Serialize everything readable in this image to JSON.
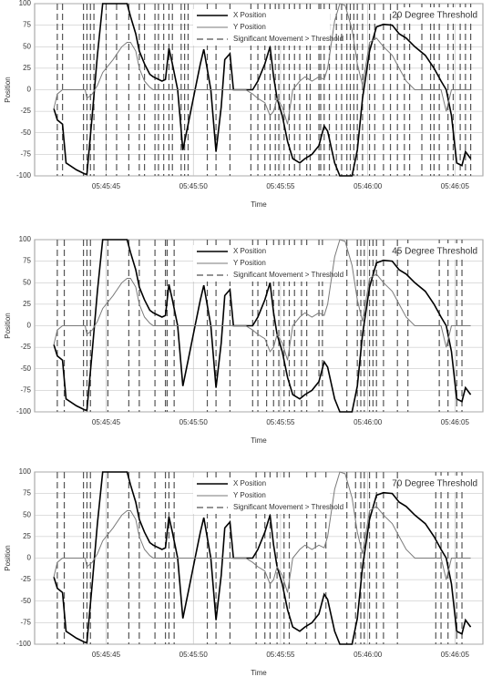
{
  "chart_data": [
    {
      "type": "line",
      "title": "20 Degree Threshold",
      "xlabel": "Time",
      "ylabel": "Position",
      "x": [
        20742.0,
        20742.2,
        20742.5,
        20742.7,
        20743.3,
        20743.8,
        20743.9,
        20744.2,
        20744.5,
        20744.8,
        20745.4,
        20745.9,
        20746.2,
        20746.4,
        20746.7,
        20746.9,
        20747.2,
        20747.5,
        20747.7,
        20748.2,
        20748.4,
        20748.6,
        20748.8,
        20749.1,
        20749.4,
        20749.7,
        20750.1,
        20750.4,
        20750.6,
        20751.0,
        20751.3,
        20751.6,
        20751.8,
        20752.1,
        20752.3,
        20752.6,
        20753.0,
        20753.4,
        20753.7,
        20754.1,
        20754.4,
        20754.6,
        20754.8,
        20755.1,
        20755.4,
        20755.7,
        20756.1,
        20756.4,
        20756.8,
        20757.2,
        20757.5,
        20757.7,
        20758.1,
        20758.4,
        20758.7,
        20759.1,
        20759.4,
        20759.7,
        20760.1,
        20760.5,
        20760.9,
        20761.4,
        20761.8,
        20762.2,
        20762.7,
        20763.3,
        20763.8,
        20764.2,
        20764.5,
        20764.8,
        20765.1,
        20765.4,
        20765.6,
        20765.9
      ],
      "series": [
        {
          "name": "X Position",
          "color": "#000000",
          "values": [
            -22,
            -35,
            -40,
            -85,
            -93,
            -98,
            -98,
            -30,
            40,
            100,
            100,
            100,
            100,
            85,
            65,
            45,
            30,
            18,
            15,
            10,
            12,
            48,
            30,
            0,
            -70,
            -40,
            0,
            30,
            47,
            0,
            -72,
            -20,
            35,
            42,
            0,
            0,
            0,
            0,
            10,
            30,
            50,
            15,
            -10,
            -30,
            -60,
            -80,
            -85,
            -80,
            -75,
            -65,
            -42,
            -48,
            -85,
            -100,
            -100,
            -100,
            -70,
            -10,
            45,
            73,
            76,
            75,
            65,
            60,
            50,
            40,
            25,
            10,
            0,
            -30,
            -85,
            -88,
            -72,
            -80
          ]
        },
        {
          "name": "Y Position",
          "color": "#7a7a7a",
          "values": [
            -22,
            -5,
            0,
            0,
            0,
            0,
            -10,
            -5,
            5,
            20,
            35,
            50,
            55,
            55,
            45,
            25,
            10,
            3,
            0,
            0,
            0,
            0,
            0,
            0,
            0,
            0,
            0,
            0,
            0,
            0,
            0,
            0,
            0,
            0,
            0,
            0,
            0,
            -5,
            -10,
            -15,
            -30,
            -25,
            -10,
            -20,
            -40,
            0,
            10,
            15,
            10,
            15,
            12,
            25,
            80,
            100,
            98,
            70,
            30,
            5,
            55,
            60,
            50,
            40,
            25,
            10,
            0,
            0,
            0,
            0,
            -25,
            0,
            0,
            0,
            0,
            0
          ]
        }
      ],
      "markers": {
        "name": "Significant Movement > Threshold",
        "color": "#555555",
        "x": [
          20742.2,
          20742.5,
          20743.7,
          20743.9,
          20744.1,
          20744.3,
          20745.0,
          20745.6,
          20746.3,
          20746.9,
          20747.2,
          20747.8,
          20748.0,
          20748.3,
          20748.6,
          20748.8,
          20749.3,
          20749.5,
          20749.7,
          20750.8,
          20751.3,
          20752.1,
          20753.3,
          20753.7,
          20754.1,
          20754.4,
          20754.7,
          20754.9,
          20755.2,
          20755.5,
          20755.8,
          20756.1,
          20756.5,
          20756.7,
          20757.2,
          20757.3,
          20757.5,
          20757.8,
          20758.2,
          20758.5,
          20758.8,
          20759.0,
          20759.2,
          20759.4,
          20759.7,
          20760.1,
          20760.4,
          20760.9,
          20761.3,
          20761.7,
          20762.1,
          20762.4,
          20763.1,
          20763.6,
          20763.8,
          20764.1,
          20764.6,
          20764.9,
          20765.3,
          20765.6,
          20765.9
        ]
      },
      "xlim": [
        20740.9,
        20766.6
      ],
      "ylim": [
        -100,
        100
      ],
      "xticks": [
        {
          "value": 20745,
          "label": "05:45:45"
        },
        {
          "value": 20750,
          "label": "05:45:50"
        },
        {
          "value": 20755,
          "label": "05:45:55"
        },
        {
          "value": 20760,
          "label": "05:46:00"
        },
        {
          "value": 20765,
          "label": "05:46:05"
        }
      ],
      "yticks": [
        -100,
        -75,
        -50,
        -25,
        0,
        25,
        50,
        75,
        100
      ],
      "grid": true
    },
    {
      "type": "line",
      "title": "45 Degree Threshold",
      "xlabel": "Time",
      "ylabel": "Position",
      "x": [
        20742.0,
        20742.2,
        20742.5,
        20742.7,
        20743.3,
        20743.8,
        20743.9,
        20744.2,
        20744.5,
        20744.8,
        20745.4,
        20745.9,
        20746.2,
        20746.4,
        20746.7,
        20746.9,
        20747.2,
        20747.5,
        20747.7,
        20748.2,
        20748.4,
        20748.6,
        20748.8,
        20749.1,
        20749.4,
        20749.7,
        20750.1,
        20750.4,
        20750.6,
        20751.0,
        20751.3,
        20751.6,
        20751.8,
        20752.1,
        20752.3,
        20752.6,
        20753.0,
        20753.4,
        20753.7,
        20754.1,
        20754.4,
        20754.6,
        20754.8,
        20755.1,
        20755.4,
        20755.7,
        20756.1,
        20756.4,
        20756.8,
        20757.2,
        20757.5,
        20757.7,
        20758.1,
        20758.4,
        20758.7,
        20759.1,
        20759.4,
        20759.7,
        20760.1,
        20760.5,
        20760.9,
        20761.4,
        20761.8,
        20762.2,
        20762.7,
        20763.3,
        20763.8,
        20764.2,
        20764.5,
        20764.8,
        20765.1,
        20765.4,
        20765.6,
        20765.9
      ],
      "series": [
        {
          "name": "X Position",
          "color": "#000000",
          "values": [
            -22,
            -35,
            -40,
            -85,
            -93,
            -98,
            -98,
            -30,
            40,
            100,
            100,
            100,
            100,
            85,
            65,
            45,
            30,
            18,
            15,
            10,
            12,
            48,
            30,
            0,
            -70,
            -40,
            0,
            30,
            47,
            0,
            -72,
            -20,
            35,
            42,
            0,
            0,
            0,
            0,
            10,
            30,
            50,
            15,
            -10,
            -30,
            -60,
            -80,
            -85,
            -80,
            -75,
            -65,
            -42,
            -48,
            -85,
            -100,
            -100,
            -100,
            -70,
            -10,
            45,
            73,
            76,
            75,
            65,
            60,
            50,
            40,
            25,
            10,
            0,
            -30,
            -85,
            -88,
            -72,
            -80
          ]
        },
        {
          "name": "Y Position",
          "color": "#7a7a7a",
          "values": [
            -22,
            -5,
            0,
            0,
            0,
            0,
            -10,
            -5,
            5,
            20,
            35,
            50,
            55,
            55,
            45,
            25,
            10,
            3,
            0,
            0,
            0,
            0,
            0,
            0,
            0,
            0,
            0,
            0,
            0,
            0,
            0,
            0,
            0,
            0,
            0,
            0,
            0,
            -5,
            -10,
            -15,
            -30,
            -25,
            -10,
            -20,
            -40,
            0,
            10,
            15,
            10,
            15,
            12,
            25,
            80,
            100,
            98,
            70,
            30,
            5,
            55,
            60,
            50,
            40,
            25,
            10,
            0,
            0,
            0,
            0,
            -25,
            0,
            0,
            0,
            0,
            0
          ]
        }
      ],
      "markers": {
        "name": "Significant Movement > Threshold",
        "color": "#555555",
        "x": [
          20742.2,
          20742.6,
          20743.7,
          20743.9,
          20744.1,
          20745.1,
          20746.3,
          20746.9,
          20747.8,
          20748.4,
          20748.5,
          20748.9,
          20750.8,
          20751.3,
          20752.1,
          20753.4,
          20753.7,
          20754.2,
          20754.6,
          20754.9,
          20755.2,
          20755.5,
          20755.8,
          20756.2,
          20756.5,
          20757.2,
          20757.4,
          20758.8,
          20759.4,
          20759.6,
          20759.8,
          20760.1,
          20760.3,
          20760.5,
          20760.9,
          20761.7,
          20762.3,
          20764.1,
          20764.6,
          20765.1,
          20765.4
        ]
      },
      "xlim": [
        20740.9,
        20766.6
      ],
      "ylim": [
        -100,
        100
      ],
      "xticks": [
        {
          "value": 20745,
          "label": "05:45:45"
        },
        {
          "value": 20750,
          "label": "05:45:50"
        },
        {
          "value": 20755,
          "label": "05:45:55"
        },
        {
          "value": 20760,
          "label": "05:46:00"
        },
        {
          "value": 20765,
          "label": "05:46:05"
        }
      ],
      "yticks": [
        -100,
        -75,
        -50,
        -25,
        0,
        25,
        50,
        75,
        100
      ],
      "grid": true
    },
    {
      "type": "line",
      "title": "70 Degree Threshold",
      "xlabel": "Time",
      "ylabel": "Position",
      "x": [
        20742.0,
        20742.2,
        20742.5,
        20742.7,
        20743.3,
        20743.8,
        20743.9,
        20744.2,
        20744.5,
        20744.8,
        20745.4,
        20745.9,
        20746.2,
        20746.4,
        20746.7,
        20746.9,
        20747.2,
        20747.5,
        20747.7,
        20748.2,
        20748.4,
        20748.6,
        20748.8,
        20749.1,
        20749.4,
        20749.7,
        20750.1,
        20750.4,
        20750.6,
        20751.0,
        20751.3,
        20751.6,
        20751.8,
        20752.1,
        20752.3,
        20752.6,
        20753.0,
        20753.4,
        20753.7,
        20754.1,
        20754.4,
        20754.6,
        20754.8,
        20755.1,
        20755.4,
        20755.7,
        20756.1,
        20756.4,
        20756.8,
        20757.2,
        20757.5,
        20757.7,
        20758.1,
        20758.4,
        20758.7,
        20759.1,
        20759.4,
        20759.7,
        20760.1,
        20760.5,
        20760.9,
        20761.4,
        20761.8,
        20762.2,
        20762.7,
        20763.3,
        20763.8,
        20764.2,
        20764.5,
        20764.8,
        20765.1,
        20765.4,
        20765.6,
        20765.9
      ],
      "series": [
        {
          "name": "X Position",
          "color": "#000000",
          "values": [
            -22,
            -35,
            -40,
            -85,
            -93,
            -98,
            -98,
            -30,
            40,
            100,
            100,
            100,
            100,
            85,
            65,
            45,
            30,
            18,
            15,
            10,
            12,
            48,
            30,
            0,
            -70,
            -40,
            0,
            30,
            47,
            0,
            -72,
            -20,
            35,
            42,
            0,
            0,
            0,
            0,
            10,
            30,
            50,
            15,
            -10,
            -30,
            -60,
            -80,
            -85,
            -80,
            -75,
            -65,
            -42,
            -48,
            -85,
            -100,
            -100,
            -100,
            -70,
            -10,
            45,
            73,
            76,
            75,
            65,
            60,
            50,
            40,
            25,
            10,
            0,
            -30,
            -85,
            -88,
            -72,
            -80
          ]
        },
        {
          "name": "Y Position",
          "color": "#7a7a7a",
          "values": [
            -22,
            -5,
            0,
            0,
            0,
            0,
            -10,
            -5,
            5,
            20,
            35,
            50,
            55,
            55,
            45,
            25,
            10,
            3,
            0,
            0,
            0,
            0,
            0,
            0,
            0,
            0,
            0,
            0,
            0,
            0,
            0,
            0,
            0,
            0,
            0,
            0,
            0,
            -5,
            -10,
            -15,
            -30,
            -25,
            -10,
            -20,
            -40,
            0,
            10,
            15,
            10,
            15,
            12,
            25,
            80,
            100,
            98,
            70,
            30,
            5,
            55,
            60,
            50,
            40,
            25,
            10,
            0,
            0,
            0,
            0,
            -25,
            0,
            0,
            0,
            0,
            0
          ]
        }
      ],
      "markers": {
        "name": "Significant Movement > Threshold",
        "color": "#555555",
        "x": [
          20742.2,
          20742.6,
          20743.7,
          20743.9,
          20744.1,
          20745.1,
          20746.3,
          20746.9,
          20747.8,
          20748.4,
          20748.6,
          20748.9,
          20750.8,
          20751.3,
          20752.1,
          20753.6,
          20754.1,
          20754.4,
          20754.8,
          20755.2,
          20755.5,
          20756.5,
          20757.0,
          20757.6,
          20758.8,
          20759.3,
          20759.6,
          20759.8,
          20760.1,
          20760.5,
          20760.9,
          20761.7,
          20763.9,
          20764.2,
          20764.6,
          20765.1,
          20765.4
        ]
      },
      "xlim": [
        20740.9,
        20766.6
      ],
      "ylim": [
        -100,
        100
      ],
      "xticks": [
        {
          "value": 20745,
          "label": "05:45:45"
        },
        {
          "value": 20750,
          "label": "05:45:50"
        },
        {
          "value": 20755,
          "label": "05:45:55"
        },
        {
          "value": 20760,
          "label": "05:46:00"
        },
        {
          "value": 20765,
          "label": "05:46:05"
        }
      ],
      "yticks": [
        -100,
        -75,
        -50,
        -25,
        0,
        25,
        50,
        75,
        100
      ],
      "grid": true
    }
  ]
}
